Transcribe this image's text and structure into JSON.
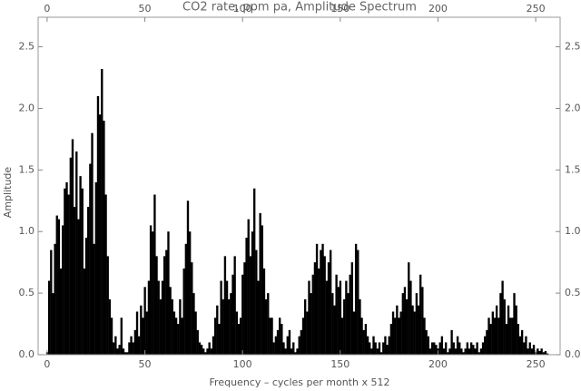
{
  "chart_data": {
    "type": "bar",
    "title": "CO2 rate, ppm pa, Amplitude Spectrum",
    "x_label": "Frequency – cycles per month x 512",
    "y_label": "Amplitude",
    "color": "#000000",
    "xlim": [
      -4.6,
      262.5
    ],
    "xticks": [
      0,
      50,
      100,
      150,
      200,
      250
    ],
    "ylim": [
      0,
      2.74
    ],
    "yticks": [
      {
        "value": 0,
        "label": "0.0"
      },
      {
        "value": 0.5,
        "label": "0.5"
      },
      {
        "value": 1,
        "label": "1.0"
      },
      {
        "value": 1.5,
        "label": "1.5"
      },
      {
        "value": 2,
        "label": "2.0"
      },
      {
        "value": 2.5,
        "label": "2.5"
      }
    ],
    "x": [
      0,
      1,
      2,
      3,
      4,
      5,
      6,
      7,
      8,
      9,
      10,
      11,
      12,
      13,
      14,
      15,
      16,
      17,
      18,
      19,
      20,
      21,
      22,
      23,
      24,
      25,
      26,
      27,
      28,
      29,
      30,
      31,
      32,
      33,
      34,
      35,
      36,
      37,
      38,
      39,
      40,
      41,
      42,
      43,
      44,
      45,
      46,
      47,
      48,
      49,
      50,
      51,
      52,
      53,
      54,
      55,
      56,
      57,
      58,
      59,
      60,
      61,
      62,
      63,
      64,
      65,
      66,
      67,
      68,
      69,
      70,
      71,
      72,
      73,
      74,
      75,
      76,
      77,
      78,
      79,
      80,
      81,
      82,
      83,
      84,
      85,
      86,
      87,
      88,
      89,
      90,
      91,
      92,
      93,
      94,
      95,
      96,
      97,
      98,
      99,
      100,
      101,
      102,
      103,
      104,
      105,
      106,
      107,
      108,
      109,
      110,
      111,
      112,
      113,
      114,
      115,
      116,
      117,
      118,
      119,
      120,
      121,
      122,
      123,
      124,
      125,
      126,
      127,
      128,
      129,
      130,
      131,
      132,
      133,
      134,
      135,
      136,
      137,
      138,
      139,
      140,
      141,
      142,
      143,
      144,
      145,
      146,
      147,
      148,
      149,
      150,
      151,
      152,
      153,
      154,
      155,
      156,
      157,
      158,
      159,
      160,
      161,
      162,
      163,
      164,
      165,
      166,
      167,
      168,
      169,
      170,
      171,
      172,
      173,
      174,
      175,
      176,
      177,
      178,
      179,
      180,
      181,
      182,
      183,
      184,
      185,
      186,
      187,
      188,
      189,
      190,
      191,
      192,
      193,
      194,
      195,
      196,
      197,
      198,
      199,
      200,
      201,
      202,
      203,
      204,
      205,
      206,
      207,
      208,
      209,
      210,
      211,
      212,
      213,
      214,
      215,
      216,
      217,
      218,
      219,
      220,
      221,
      222,
      223,
      224,
      225,
      226,
      227,
      228,
      229,
      230,
      231,
      232,
      233,
      234,
      235,
      236,
      237,
      238,
      239,
      240,
      241,
      242,
      243,
      244,
      245,
      246,
      247,
      248,
      249,
      250,
      251,
      252,
      253,
      254,
      255,
      256
    ],
    "values": [
      0.02,
      0.6,
      0.85,
      0.5,
      0.9,
      1.13,
      1.1,
      0.7,
      1.05,
      1.35,
      1.4,
      1.3,
      1.6,
      1.75,
      1.2,
      1.65,
      1.1,
      1.45,
      1.35,
      0.7,
      0.95,
      1.2,
      1.55,
      1.8,
      0.9,
      1.4,
      2.1,
      1.95,
      2.32,
      1.9,
      1.3,
      0.8,
      0.45,
      0.3,
      0.1,
      0.15,
      0.05,
      0.08,
      0.3,
      0.05,
      0.02,
      0.02,
      0.1,
      0.15,
      0.1,
      0.2,
      0.35,
      0.15,
      0.4,
      0.3,
      0.55,
      0.35,
      0.6,
      1.05,
      1.0,
      1.3,
      0.8,
      0.6,
      0.45,
      0.6,
      0.8,
      0.85,
      1.0,
      0.55,
      0.45,
      0.35,
      0.3,
      0.25,
      0.45,
      0.3,
      0.7,
      0.9,
      1.25,
      1.0,
      0.75,
      0.5,
      0.35,
      0.2,
      0.1,
      0.08,
      0.05,
      0.02,
      0.05,
      0.1,
      0.05,
      0.15,
      0.3,
      0.4,
      0.25,
      0.6,
      0.45,
      0.8,
      0.6,
      0.45,
      0.5,
      0.65,
      0.8,
      0.35,
      0.25,
      0.3,
      0.65,
      0.75,
      0.95,
      1.1,
      0.8,
      1.0,
      1.35,
      0.85,
      0.6,
      1.15,
      1.05,
      0.7,
      0.45,
      0.5,
      0.3,
      0.3,
      0.1,
      0.15,
      0.2,
      0.3,
      0.25,
      0.1,
      0.05,
      0.15,
      0.2,
      0.05,
      0.1,
      0.02,
      0.05,
      0.15,
      0.2,
      0.3,
      0.45,
      0.35,
      0.6,
      0.5,
      0.65,
      0.75,
      0.9,
      0.7,
      0.85,
      0.9,
      0.8,
      0.6,
      0.75,
      0.85,
      0.5,
      0.4,
      0.65,
      0.55,
      0.6,
      0.3,
      0.45,
      0.6,
      0.5,
      0.65,
      0.75,
      0.35,
      0.9,
      0.85,
      0.45,
      0.3,
      0.2,
      0.25,
      0.15,
      0.1,
      0.05,
      0.15,
      0.1,
      0.05,
      0.1,
      0.02,
      0.1,
      0.15,
      0.08,
      0.15,
      0.25,
      0.35,
      0.3,
      0.4,
      0.3,
      0.35,
      0.5,
      0.55,
      0.45,
      0.75,
      0.6,
      0.4,
      0.35,
      0.5,
      0.4,
      0.65,
      0.55,
      0.3,
      0.2,
      0.15,
      0.05,
      0.1,
      0.1,
      0.08,
      0.05,
      0.1,
      0.15,
      0.05,
      0.1,
      0.02,
      0.05,
      0.2,
      0.1,
      0.05,
      0.15,
      0.1,
      0.05,
      0.02,
      0.05,
      0.1,
      0.05,
      0.1,
      0.08,
      0.05,
      0.1,
      0.02,
      0.05,
      0.1,
      0.15,
      0.2,
      0.3,
      0.25,
      0.35,
      0.3,
      0.4,
      0.3,
      0.5,
      0.6,
      0.45,
      0.25,
      0.4,
      0.3,
      0.3,
      0.5,
      0.4,
      0.25,
      0.15,
      0.2,
      0.1,
      0.15,
      0.05,
      0.1,
      0.05,
      0.08,
      0.02,
      0.05,
      0.03,
      0.05,
      0.02,
      0.03,
      0.01
    ]
  }
}
